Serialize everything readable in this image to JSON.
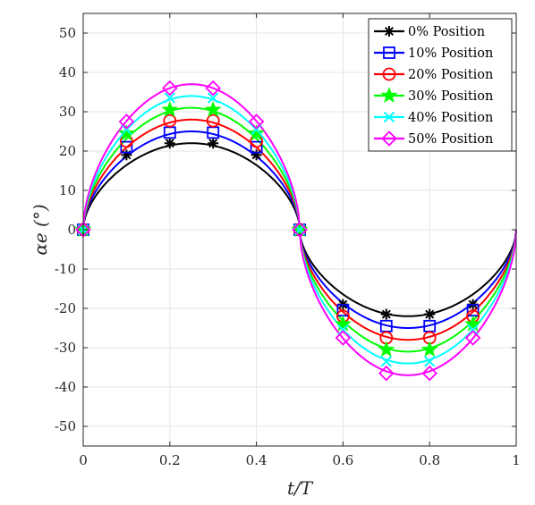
{
  "chart_data": {
    "type": "line",
    "title": "",
    "xlabel": "t/T",
    "ylabel": "αe (°)",
    "xlim": [
      0,
      1
    ],
    "ylim": [
      -55,
      55
    ],
    "xticks": [
      0,
      0.2,
      0.4,
      0.6,
      0.8,
      1
    ],
    "xtick_labels": [
      "0",
      "0.2",
      "0.4",
      "0.6",
      "0.8",
      "1"
    ],
    "yticks": [
      -50,
      -40,
      -30,
      -20,
      -10,
      0,
      10,
      20,
      30,
      40,
      50
    ],
    "ytick_labels": [
      "-50",
      "-40",
      "-30",
      "-20",
      "-10",
      "0",
      "10",
      "20",
      "30",
      "40",
      "50"
    ],
    "grid": true,
    "legend_position": "top-right",
    "marker_x": [
      0,
      0.1,
      0.2,
      0.3,
      0.4,
      0.5,
      0.6,
      0.7,
      0.8,
      0.9
    ],
    "series": [
      {
        "name": "0% Position",
        "color": "#000000",
        "marker": "asterisk",
        "amplitude": 22,
        "marker_values": [
          0,
          19,
          22,
          22,
          19,
          0,
          -19,
          -21.5,
          -21.5,
          -19
        ]
      },
      {
        "name": "10% Position",
        "color": "#0000ff",
        "marker": "square",
        "amplitude": 25,
        "marker_values": [
          0,
          21,
          24.7,
          24.7,
          21,
          0,
          -20.5,
          -24.5,
          -24.5,
          -20.5
        ]
      },
      {
        "name": "20% Position",
        "color": "#ff0000",
        "marker": "circle",
        "amplitude": 28,
        "marker_values": [
          0,
          22.5,
          27.7,
          27.7,
          22.5,
          0,
          -22,
          -27.5,
          -27.5,
          -22
        ]
      },
      {
        "name": "30% Position",
        "color": "#00ff00",
        "marker": "star",
        "amplitude": 31,
        "marker_values": [
          0,
          24.5,
          30.5,
          30.5,
          24.5,
          0,
          -24,
          -30.5,
          -30.5,
          -24
        ]
      },
      {
        "name": "40% Position",
        "color": "#00ffff",
        "marker": "cross",
        "amplitude": 34,
        "marker_values": [
          0,
          25.5,
          33.5,
          33.5,
          25.5,
          0,
          -25.5,
          -33.5,
          -33.5,
          -25.5
        ]
      },
      {
        "name": "50% Position",
        "color": "#ff00ff",
        "marker": "diamond",
        "amplitude": 37,
        "marker_values": [
          0,
          27.5,
          36,
          36,
          27.5,
          0,
          -27.5,
          -36.5,
          -36.5,
          -27.5
        ]
      }
    ]
  }
}
